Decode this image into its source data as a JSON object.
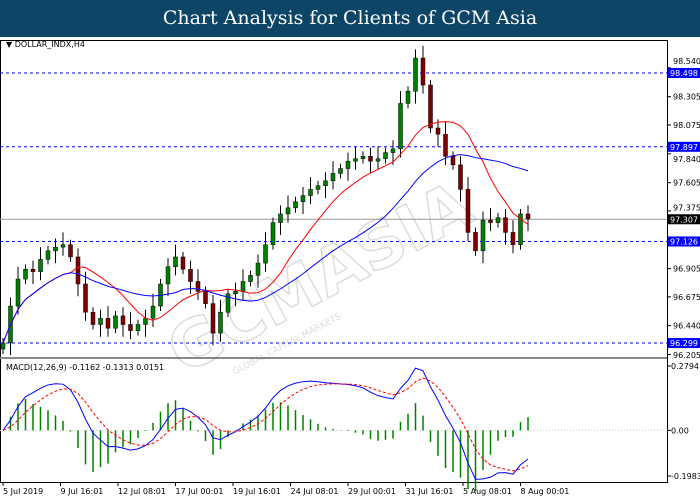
{
  "header": {
    "title": "Chart Analysis for Clients of GCM Asia"
  },
  "watermark": {
    "text": "GCMASIA",
    "subtext": "GLOBAL CAPITAL MARKETS"
  },
  "chart_data": {
    "type": "candlestick",
    "symbol_label": "DOLLAR_INDX,H4",
    "closes": [
      96.3,
      96.6,
      96.82,
      96.9,
      96.88,
      96.98,
      97.05,
      97.08,
      97.1,
      97.0,
      96.78,
      96.55,
      96.45,
      96.5,
      96.42,
      96.52,
      96.45,
      96.4,
      96.45,
      96.5,
      96.6,
      96.78,
      96.92,
      97.0,
      96.9,
      96.8,
      96.72,
      96.62,
      96.38,
      96.55,
      96.7,
      96.72,
      96.8,
      96.85,
      96.95,
      97.1,
      97.28,
      97.35,
      97.4,
      97.45,
      97.5,
      97.55,
      97.58,
      97.62,
      97.68,
      97.72,
      97.78,
      97.8,
      97.82,
      97.78,
      97.8,
      97.85,
      97.88,
      98.25,
      98.35,
      98.62,
      98.4,
      98.05,
      98.0,
      97.82,
      97.75,
      97.55,
      97.2,
      97.05,
      97.3,
      97.28,
      97.32,
      97.2,
      97.1,
      97.35,
      97.31
    ],
    "ylim": [
      96.205,
      98.56
    ],
    "y_ticks": [
      "98.540",
      "98.305",
      "98.075",
      "97.840",
      "97.605",
      "97.375",
      "96.905",
      "96.675",
      "96.440",
      "96.205"
    ],
    "x_ticks": [
      "5 Jul 2019",
      "9 Jul 16:01",
      "12 Jul 08:01",
      "17 Jul 00:01",
      "19 Jul 16:01",
      "24 Jul 08:01",
      "29 Jul 00:01",
      "31 Jul 16:01",
      "5 Aug 08:01",
      "8 Aug 00:01"
    ],
    "levels": [
      {
        "value": 98.498,
        "label": "98.498",
        "color": "#0000ff"
      },
      {
        "value": 97.897,
        "label": "97.897",
        "color": "#0000ff"
      },
      {
        "value": 97.126,
        "label": "97.126",
        "color": "#0000ff"
      },
      {
        "value": 96.299,
        "label": "96.299",
        "color": "#0000ff"
      }
    ],
    "current_price": {
      "value": 97.307,
      "label": "97.307"
    },
    "moving_averages": [
      {
        "color": "#ff0000",
        "period": 10
      },
      {
        "color": "#0000ff",
        "period": 24
      }
    ],
    "bull_color": "#008000",
    "bear_color": "#800000",
    "macd": {
      "label": "MACD(12,26,9) -0.1162 -0.1313 0.0151",
      "ylim": [
        -0.1983,
        0.2794
      ],
      "y_ticks": [
        "0.2794",
        "0.00",
        "-0.1983"
      ],
      "line_color": "#0000ff",
      "signal_color": "#ff0000",
      "hist_color": "#008000"
    }
  }
}
